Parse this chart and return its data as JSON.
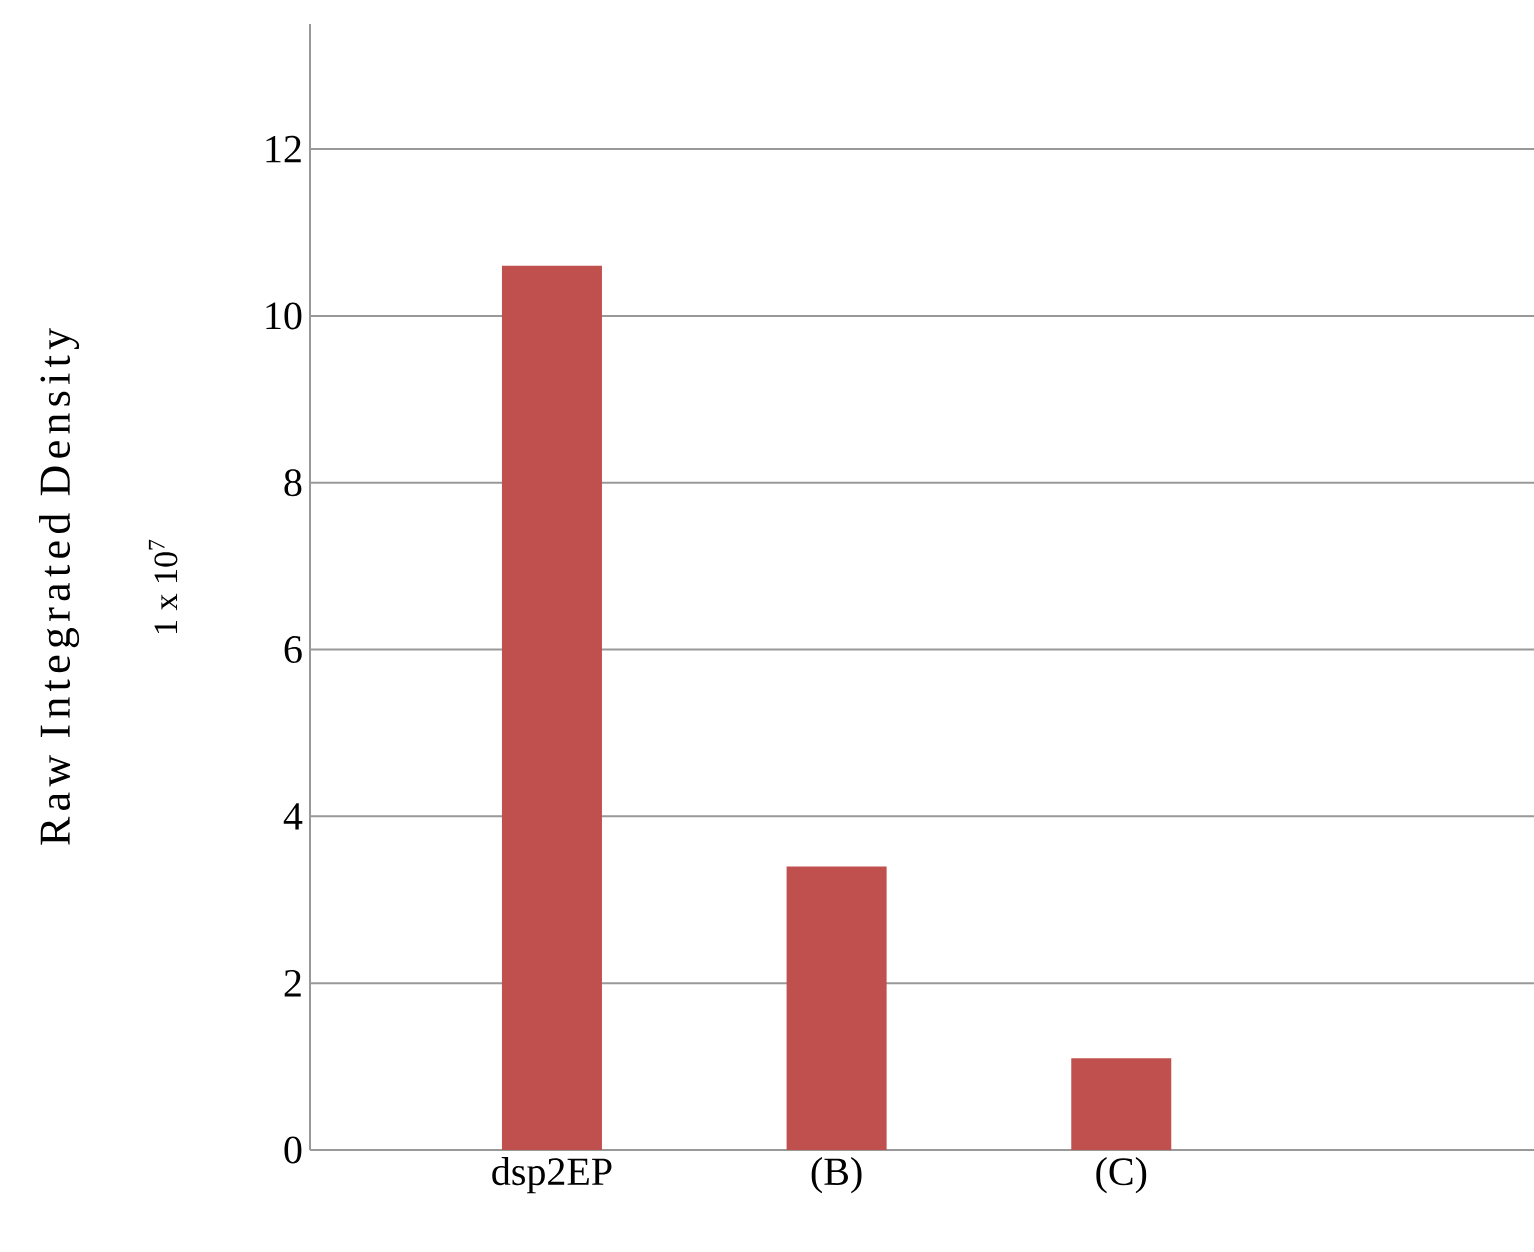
{
  "chart_data": {
    "type": "bar",
    "ylabel": "Raw Integrated Density",
    "annotations": [
      "1 x 10$^{7}$"
    ],
    "categories": [
      "dsp2EP",
      "(B)",
      "(C)"
    ],
    "values": [
      10.6,
      3.4,
      1.1
    ],
    "color": "#c0504d",
    "ylim": [
      0,
      13.5
    ],
    "yticks": [
      0,
      2,
      4,
      6,
      8,
      10,
      12
    ],
    "grid": "y"
  }
}
